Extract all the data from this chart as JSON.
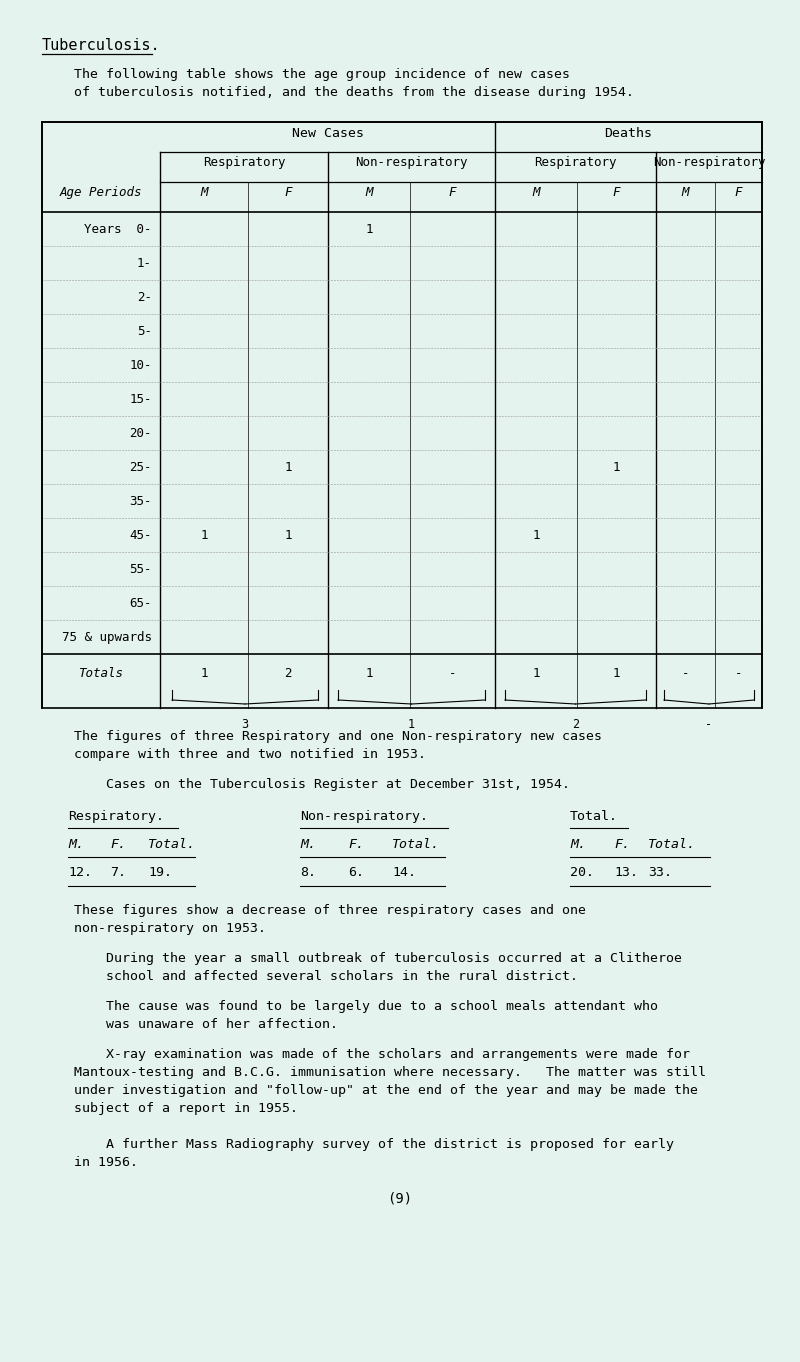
{
  "bg_color": "#e5f3ee",
  "title": "Tuberculosis.",
  "intro_line1": "    The following table shows the age group incidence of new cases",
  "intro_line2": "    of tuberculosis notified, and the deaths from the disease during 1954.",
  "age_rows": [
    "Years  0-",
    "1-",
    "2-",
    "5-",
    "10-",
    "15-",
    "20-",
    "25-",
    "35-",
    "45-",
    "55-",
    "65-",
    "75 & upwards"
  ],
  "table_data": [
    [
      "",
      "",
      "1",
      "",
      "",
      "",
      "",
      ""
    ],
    [
      "",
      "",
      "",
      "",
      "",
      "",
      "",
      ""
    ],
    [
      "",
      "",
      "",
      "",
      "",
      "",
      "",
      ""
    ],
    [
      "",
      "",
      "",
      "",
      "",
      "",
      "",
      ""
    ],
    [
      "",
      "",
      "",
      "",
      "",
      "",
      "",
      ""
    ],
    [
      "",
      "",
      "",
      "",
      "",
      "",
      "",
      ""
    ],
    [
      "",
      "",
      "",
      "",
      "",
      "",
      "",
      ""
    ],
    [
      "",
      "1",
      "",
      "",
      "",
      "1",
      "",
      ""
    ],
    [
      "",
      "",
      "",
      "",
      "",
      "",
      "",
      ""
    ],
    [
      "1",
      "1",
      "",
      "",
      "1",
      "",
      "",
      ""
    ],
    [
      "",
      "",
      "",
      "",
      "",
      "",
      "",
      ""
    ],
    [
      "",
      "",
      "",
      "",
      "",
      "",
      "",
      ""
    ],
    [
      "",
      "",
      "",
      "",
      "",
      "",
      "",
      ""
    ]
  ],
  "totals_row": [
    "1",
    "2",
    "1",
    "-",
    "1",
    "1",
    "-",
    "-"
  ],
  "totals_braces": [
    "3",
    "1",
    "2",
    "-"
  ],
  "para1_line1": "    The figures of three Respiratory and one Non-respiratory new cases",
  "para1_line2": "    compare with three and two notified in 1953.",
  "para2": "        Cases on the Tuberculosis Register at December 31st, 1954.",
  "reg_group1": "Respiratory.",
  "reg_group2": "Non-respiratory.",
  "reg_group3": "Total.",
  "reg_subheaders": [
    "M.",
    "F.",
    "Total.",
    "M.",
    "F.",
    "Total.",
    "M.",
    "F.",
    "Total."
  ],
  "reg_data": [
    "12.",
    "7.",
    "19.",
    "8.",
    "6.",
    "14.",
    "20.",
    "13.",
    "33."
  ],
  "para3_line1": "    These figures show a decrease of three respiratory cases and one",
  "para3_line2": "    non-respiratory on 1953.",
  "para4_line1": "        During the year a small outbreak of tuberculosis occurred at a Clitheroe",
  "para4_line2": "        school and affected several scholars in the rural district.",
  "para5_line1": "        The cause was found to be largely due to a school meals attendant who",
  "para5_line2": "        was unaware of her affection.",
  "para6_line1": "        X-ray examination was made of the scholars and arrangements were made for",
  "para6_line2": "    Mantoux-testing and B.C.G. immunisation where necessary.   The matter was still",
  "para6_line3": "    under investigation and \"follow-up\" at the end of the year and may be made the",
  "para6_line4": "    subject of a report in 1955.",
  "para7_line1": "        A further Mass Radiography survey of the district is proposed for early",
  "para7_line2": "    in 1956.",
  "page_num": "(9)"
}
